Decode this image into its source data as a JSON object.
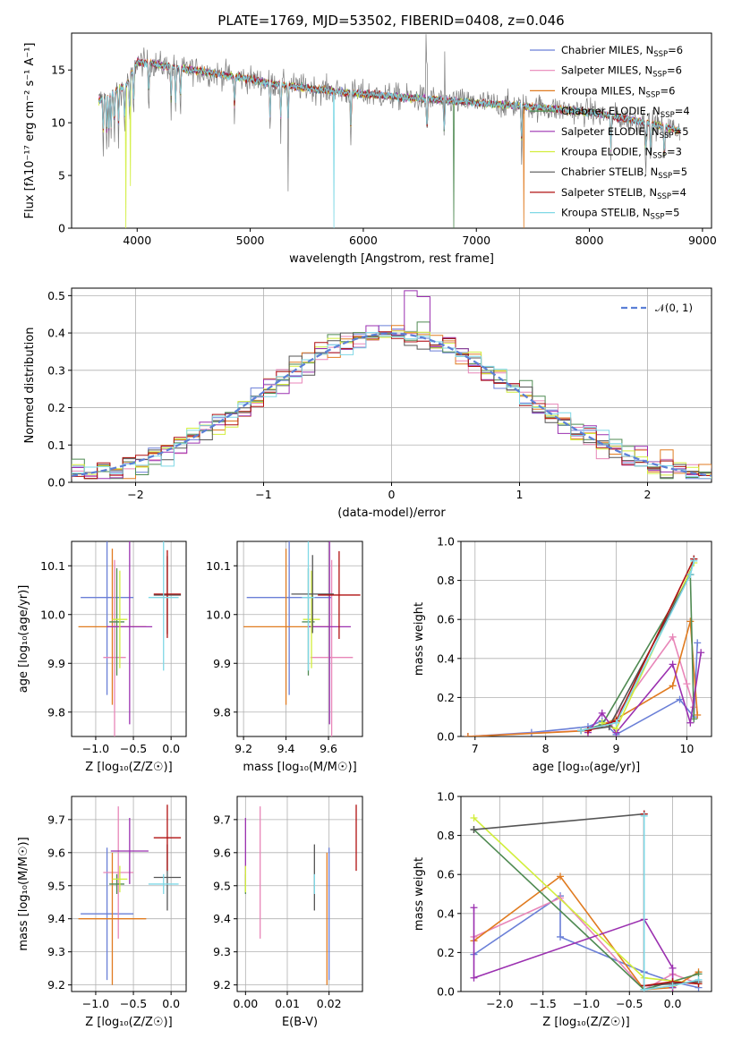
{
  "figure": {
    "title": "PLATE=1769, MJD=53502, FIBERID=0408, z=0.046"
  },
  "models": [
    {
      "name": "Chabrier MILES",
      "nssp": "6",
      "color": "#6a7fd7"
    },
    {
      "name": "Salpeter MILES",
      "nssp": "6",
      "color": "#e886b8"
    },
    {
      "name": "Kroupa MILES",
      "nssp": "6",
      "color": "#e07b20"
    },
    {
      "name": "Chabrier ELODIE",
      "nssp": "4",
      "color": "#4f8a52"
    },
    {
      "name": "Salpeter ELODIE",
      "nssp": "5",
      "color": "#9b30b0"
    },
    {
      "name": "Kroupa ELODIE",
      "nssp": "3",
      "color": "#d2ee3c"
    },
    {
      "name": "Chabrier STELIB",
      "nssp": "5",
      "color": "#555555"
    },
    {
      "name": "Salpeter STELIB",
      "nssp": "4",
      "color": "#b01010"
    },
    {
      "name": "Kroupa STELIB",
      "nssp": "5",
      "color": "#7fd8e6"
    }
  ],
  "chart_data": [
    {
      "type": "line",
      "id": "spectrum",
      "title": "PLATE=1769, MJD=53502, FIBERID=0408, z=0.046",
      "xlabel": "wavelength [Angstrom, rest frame]",
      "ylabel": "Flux [fλ10⁻¹⁷ erg cm⁻² s⁻¹ A⁻¹]",
      "xlim": [
        3420,
        9080
      ],
      "ylim": [
        0,
        18.5
      ],
      "xticks": [
        4000,
        5000,
        6000,
        7000,
        8000,
        9000
      ],
      "yticks": [
        0,
        5,
        10,
        15
      ],
      "continuum": {
        "x": [
          3650,
          3900,
          4000,
          4300,
          4800,
          5200,
          5800,
          6500,
          7000,
          7500,
          8000,
          8500,
          8800
        ],
        "y": [
          12.0,
          13.5,
          15.8,
          15.3,
          14.5,
          13.7,
          12.9,
          12.3,
          11.9,
          11.5,
          11.0,
          10.0,
          9.3
        ]
      },
      "notes": "data spectrum shown in grey with 9 model spectra overplotted",
      "legend_loc": "upper right"
    },
    {
      "type": "line",
      "id": "residual-histogram",
      "xlabel": "(data-model)/error",
      "ylabel": "Normed distribution",
      "xlim": [
        -2.5,
        2.5
      ],
      "ylim": [
        0,
        0.52
      ],
      "xticks": [
        -2,
        -1,
        0,
        1,
        2
      ],
      "yticks": [
        0.0,
        0.1,
        0.2,
        0.3,
        0.4,
        0.5
      ],
      "bin_width": 0.1,
      "reference": {
        "name": "𝒩(0, 1)",
        "mean": 0,
        "sigma": 1,
        "color": "#5b7fd6",
        "style": "dashed"
      },
      "legend_loc": "upper right",
      "grid": true
    },
    {
      "type": "scatter",
      "id": "age-vs-Z",
      "xlabel": "Z [log₁₀(Z/Z☉)]",
      "ylabel": "age  [log₁₀(age/yr)]",
      "xlim": [
        -1.32,
        0.2
      ],
      "ylim": [
        9.75,
        10.15
      ],
      "xticks": [
        -1.0,
        -0.5,
        0.0
      ],
      "yticks": [
        9.8,
        9.9,
        10.0,
        10.1
      ],
      "points": [
        {
          "model": 0,
          "x": -0.85,
          "xerr": 0.35,
          "y": 10.035,
          "yerr": 0.2
        },
        {
          "model": 1,
          "x": -0.75,
          "xerr": 0.15,
          "y": 9.912,
          "yerr": 0.2
        },
        {
          "model": 2,
          "x": -0.78,
          "xerr": 0.45,
          "y": 9.975,
          "yerr": 0.16
        },
        {
          "model": 3,
          "x": -0.72,
          "xerr": 0.1,
          "y": 9.985,
          "yerr": 0.11
        },
        {
          "model": 4,
          "x": -0.55,
          "xerr": 0.3,
          "y": 9.975,
          "yerr": 0.2
        },
        {
          "model": 5,
          "x": -0.68,
          "xerr": 0.1,
          "y": 9.99,
          "yerr": 0.1
        },
        {
          "model": 6,
          "x": -0.05,
          "xerr": 0.18,
          "y": 10.04,
          "yerr": 0.08
        },
        {
          "model": 7,
          "x": -0.05,
          "xerr": 0.18,
          "y": 10.042,
          "yerr": 0.09
        },
        {
          "model": 8,
          "x": -0.1,
          "xerr": 0.2,
          "y": 10.035,
          "yerr": 0.15
        }
      ]
    },
    {
      "type": "scatter",
      "id": "age-vs-mass",
      "xlabel": "mass [log₁₀(M/M☉)]",
      "ylabel": "",
      "xlim": [
        9.17,
        9.76
      ],
      "ylim": [
        9.75,
        10.15
      ],
      "xticks": [
        9.2,
        9.4,
        9.6
      ],
      "yticks": [
        9.8,
        9.9,
        10.0,
        10.1
      ],
      "points": [
        {
          "model": 0,
          "x": 9.415,
          "xerr": 0.2,
          "y": 10.035,
          "yerr": 0.2
        },
        {
          "model": 1,
          "x": 9.615,
          "xerr": 0.1,
          "y": 9.912,
          "yerr": 0.2
        },
        {
          "model": 2,
          "x": 9.4,
          "xerr": 0.2,
          "y": 9.975,
          "yerr": 0.16
        },
        {
          "model": 3,
          "x": 9.505,
          "xerr": 0.03,
          "y": 9.985,
          "yerr": 0.11
        },
        {
          "model": 4,
          "x": 9.605,
          "xerr": 0.1,
          "y": 9.975,
          "yerr": 0.2
        },
        {
          "model": 5,
          "x": 9.52,
          "xerr": 0.04,
          "y": 9.99,
          "yerr": 0.1
        },
        {
          "model": 6,
          "x": 9.525,
          "xerr": 0.1,
          "y": 10.042,
          "yerr": 0.08
        },
        {
          "model": 7,
          "x": 9.65,
          "xerr": 0.1,
          "y": 10.04,
          "yerr": 0.09
        },
        {
          "model": 8,
          "x": 9.505,
          "xerr": 0.03,
          "y": 10.035,
          "yerr": 0.15
        }
      ]
    },
    {
      "type": "line",
      "id": "mass-weight-vs-age",
      "xlabel": "age  [log₁₀(age/yr)]",
      "ylabel": "mass weight",
      "xlim": [
        6.8,
        10.35
      ],
      "ylim": [
        0,
        1.0
      ],
      "xticks": [
        7,
        8,
        9,
        10
      ],
      "yticks": [
        0.0,
        0.2,
        0.4,
        0.6,
        0.8,
        1.0
      ],
      "series": [
        {
          "model": 0,
          "x": [
            6.9,
            7.8,
            8.6,
            8.8,
            9.0,
            9.9,
            10.1,
            10.15
          ],
          "y": [
            0.0,
            0.02,
            0.05,
            0.08,
            0.01,
            0.19,
            0.1,
            0.48
          ]
        },
        {
          "model": 1,
          "x": [
            6.9,
            8.5,
            8.9,
            9.8,
            10.0,
            10.1
          ],
          "y": [
            0.0,
            0.03,
            0.06,
            0.51,
            0.27,
            0.15
          ]
        },
        {
          "model": 2,
          "x": [
            6.9,
            8.6,
            9.0,
            9.8,
            10.05,
            10.15
          ],
          "y": [
            0.0,
            0.03,
            0.09,
            0.26,
            0.59,
            0.11
          ]
        },
        {
          "model": 3,
          "x": [
            8.5,
            8.8,
            10.05,
            10.1
          ],
          "y": [
            0.03,
            0.06,
            0.83,
            0.09
          ]
        },
        {
          "model": 4,
          "x": [
            8.6,
            8.8,
            9.0,
            9.8,
            10.05,
            10.2
          ],
          "y": [
            0.02,
            0.12,
            0.02,
            0.37,
            0.07,
            0.43
          ]
        },
        {
          "model": 5,
          "x": [
            8.8,
            9.0,
            10.1
          ],
          "y": [
            0.07,
            0.04,
            0.89
          ]
        },
        {
          "model": 6,
          "x": [
            8.5,
            8.9,
            10.05,
            10.1
          ],
          "y": [
            0.03,
            0.05,
            0.83,
            0.91
          ]
        },
        {
          "model": 7,
          "x": [
            8.6,
            9.0,
            10.1
          ],
          "y": [
            0.03,
            0.08,
            0.91
          ]
        },
        {
          "model": 8,
          "x": [
            8.5,
            9.0,
            10.05,
            10.1
          ],
          "y": [
            0.03,
            0.07,
            0.83,
            0.9
          ]
        }
      ]
    },
    {
      "type": "scatter",
      "id": "mass-vs-Z",
      "xlabel": "Z [log₁₀(Z/Z☉)]",
      "ylabel": "mass [log₁₀(M/M☉)]",
      "xlim": [
        -1.32,
        0.2
      ],
      "ylim": [
        9.18,
        9.77
      ],
      "xticks": [
        -1.0,
        -0.5,
        0.0
      ],
      "yticks": [
        9.2,
        9.3,
        9.4,
        9.5,
        9.6,
        9.7
      ],
      "points": [
        {
          "model": 0,
          "x": -0.85,
          "xerr": 0.35,
          "y": 9.415,
          "yerr": 0.2
        },
        {
          "model": 1,
          "x": -0.7,
          "xerr": 0.2,
          "y": 9.54,
          "yerr": 0.2
        },
        {
          "model": 2,
          "x": -0.78,
          "xerr": 0.45,
          "y": 9.4,
          "yerr": 0.2
        },
        {
          "model": 3,
          "x": -0.72,
          "xerr": 0.1,
          "y": 9.505,
          "yerr": 0.03
        },
        {
          "model": 4,
          "x": -0.55,
          "xerr": 0.25,
          "y": 9.605,
          "yerr": 0.1
        },
        {
          "model": 5,
          "x": -0.68,
          "xerr": 0.1,
          "y": 9.52,
          "yerr": 0.04
        },
        {
          "model": 6,
          "x": -0.05,
          "xerr": 0.18,
          "y": 9.525,
          "yerr": 0.1
        },
        {
          "model": 7,
          "x": -0.05,
          "xerr": 0.18,
          "y": 9.645,
          "yerr": 0.1
        },
        {
          "model": 8,
          "x": -0.1,
          "xerr": 0.2,
          "y": 9.505,
          "yerr": 0.03
        }
      ]
    },
    {
      "type": "scatter",
      "id": "mass-vs-EBV",
      "xlabel": "E(B-V)",
      "ylabel": "",
      "xlim": [
        -0.002,
        0.028
      ],
      "ylim": [
        9.18,
        9.77
      ],
      "xticks": [
        0.0,
        0.01,
        0.02
      ],
      "yticks": [
        9.2,
        9.3,
        9.4,
        9.5,
        9.6,
        9.7
      ],
      "points": [
        {
          "model": 0,
          "x": 0.02,
          "xerr": 0,
          "y": 9.415,
          "yerr": 0.2
        },
        {
          "model": 1,
          "x": 0.0035,
          "xerr": 0,
          "y": 9.54,
          "yerr": 0.2
        },
        {
          "model": 2,
          "x": 0.0195,
          "xerr": 0,
          "y": 9.4,
          "yerr": 0.2
        },
        {
          "model": 3,
          "x": 0.0,
          "xerr": 0,
          "y": 9.505,
          "yerr": 0.03
        },
        {
          "model": 4,
          "x": 0.0,
          "xerr": 0,
          "y": 9.605,
          "yerr": 0.1
        },
        {
          "model": 5,
          "x": 0.0,
          "xerr": 0,
          "y": 9.52,
          "yerr": 0.04
        },
        {
          "model": 6,
          "x": 0.0165,
          "xerr": 0,
          "y": 9.525,
          "yerr": 0.1
        },
        {
          "model": 7,
          "x": 0.0265,
          "xerr": 0,
          "y": 9.645,
          "yerr": 0.1
        },
        {
          "model": 8,
          "x": 0.0165,
          "xerr": 0,
          "y": 9.505,
          "yerr": 0.03
        }
      ]
    },
    {
      "type": "line",
      "id": "mass-weight-vs-Z",
      "xlabel": "Z [log₁₀(Z/Z☉)]",
      "ylabel": "mass weight",
      "xlim": [
        -2.45,
        0.45
      ],
      "ylim": [
        0,
        1.0
      ],
      "xticks": [
        -2.0,
        -1.5,
        -1.0,
        -0.5,
        0.0
      ],
      "yticks": [
        0.0,
        0.2,
        0.4,
        0.6,
        0.8,
        1.0
      ],
      "series": [
        {
          "model": 0,
          "x": [
            -2.3,
            -1.3,
            -1.3,
            -0.33,
            0.0,
            0.3
          ],
          "y": [
            0.19,
            0.49,
            0.28,
            0.1,
            0.05,
            0.02
          ]
        },
        {
          "model": 1,
          "x": [
            -2.3,
            -1.3,
            -0.33,
            0.0,
            0.3
          ],
          "y": [
            0.28,
            0.48,
            0.01,
            0.09,
            0.04
          ]
        },
        {
          "model": 2,
          "x": [
            -2.3,
            -1.3,
            -0.33,
            0.0,
            0.3
          ],
          "y": [
            0.26,
            0.59,
            0.01,
            0.02,
            0.1
          ]
        },
        {
          "model": 3,
          "x": [
            -2.3,
            -0.33,
            0.3
          ],
          "y": [
            0.83,
            0.01,
            0.09
          ]
        },
        {
          "model": 4,
          "x": [
            -2.3,
            -2.3,
            -0.33,
            0.0,
            0.0
          ],
          "y": [
            0.43,
            0.07,
            0.37,
            0.12,
            0.02
          ]
        },
        {
          "model": 5,
          "x": [
            -2.3,
            -0.33,
            0.3
          ],
          "y": [
            0.89,
            0.07,
            0.04
          ]
        },
        {
          "model": 6,
          "x": [
            -2.3,
            -0.33,
            -0.33,
            0.0,
            0.3
          ],
          "y": [
            0.83,
            0.91,
            0.03,
            0.04,
            0.05
          ]
        },
        {
          "model": 7,
          "x": [
            -0.33,
            -0.33,
            0.0,
            0.3
          ],
          "y": [
            0.91,
            0.03,
            0.05,
            0.04
          ]
        },
        {
          "model": 8,
          "x": [
            -0.33,
            -0.33,
            0.0,
            0.3
          ],
          "y": [
            0.9,
            0.01,
            0.03,
            0.06
          ]
        }
      ]
    }
  ]
}
